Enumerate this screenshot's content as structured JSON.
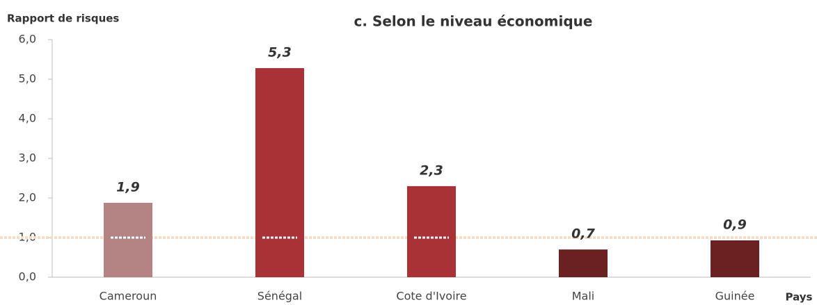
{
  "chart_data": {
    "type": "bar",
    "title": "c. Selon le niveau économique",
    "y_label": "Rapport de risques",
    "x_label": "Pays",
    "categories": [
      "Cameroun",
      "Sénégal",
      "Cote d'Ivoire",
      "Mali",
      "Guinée"
    ],
    "values": [
      1.88,
      5.28,
      2.3,
      0.7,
      0.93
    ],
    "value_labels": [
      "1,9",
      "5,3",
      "2,3",
      "0,7",
      "0,9"
    ],
    "colors": [
      "#b48484",
      "#a83236",
      "#a83236",
      "#6b2022",
      "#6b2022"
    ],
    "ylim": [
      0,
      6
    ],
    "yticks": [
      {
        "value": 0,
        "label": "0,0"
      },
      {
        "value": 1,
        "label": "1,0"
      },
      {
        "value": 2,
        "label": "2,0"
      },
      {
        "value": 3,
        "label": "3,0"
      },
      {
        "value": 4,
        "label": "4,0"
      },
      {
        "value": 5,
        "label": "5,0"
      },
      {
        "value": 6,
        "label": "6,0"
      }
    ],
    "reference_line": {
      "value": 1,
      "color": "#f5dcc8"
    }
  }
}
